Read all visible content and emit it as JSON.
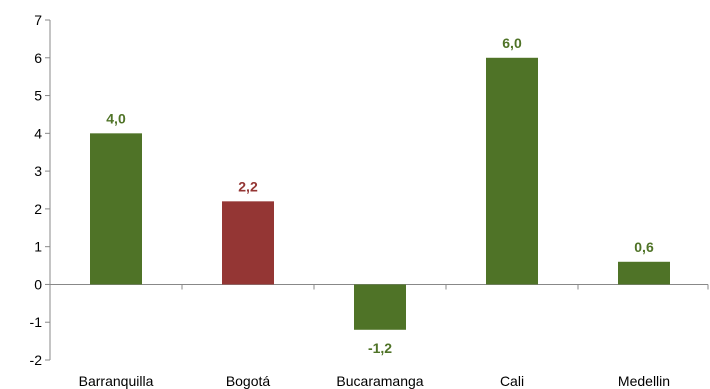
{
  "chart_data": {
    "type": "bar",
    "title": "",
    "xlabel": "",
    "ylabel": "",
    "categories": [
      "Barranquilla",
      "Bogotá",
      "Bucaramanga",
      "Cali",
      "Medellin"
    ],
    "values": [
      4.0,
      2.2,
      -1.2,
      6.0,
      0.6
    ],
    "data_labels": [
      "4,0",
      "2,2",
      "-1,2",
      "6,0",
      "0,6"
    ],
    "bar_colors": [
      "#4f7327",
      "#943634",
      "#4f7327",
      "#4f7327",
      "#4f7327"
    ],
    "label_colors": [
      "#4f7327",
      "#943634",
      "#4f7327",
      "#4f7327",
      "#4f7327"
    ],
    "ylim": [
      -2,
      7
    ],
    "yticks": [
      -2,
      -1,
      0,
      1,
      2,
      3,
      4,
      5,
      6,
      7
    ],
    "ytick_labels": [
      "-2",
      "-1",
      "0",
      "1",
      "2",
      "3",
      "4",
      "5",
      "6",
      "7"
    ],
    "grid": false,
    "legend": "none"
  }
}
